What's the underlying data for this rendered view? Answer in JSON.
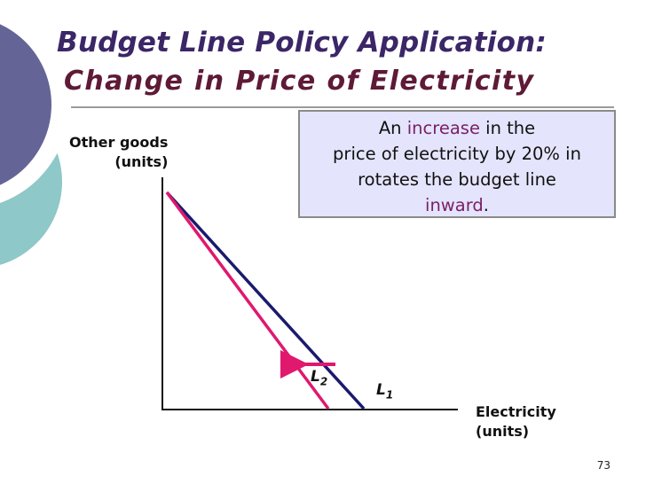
{
  "slide": {
    "title_line1": "Budget Line Policy Application:",
    "title_line2": "Change in Price of Electricity",
    "page_number": "73"
  },
  "callout": {
    "pre": "An ",
    "highlight1": "increase",
    "post1": " in the",
    "line2": "price of electricity by 20% in",
    "line3": "rotates the budget line",
    "highlight2": "inward",
    "post2": "."
  },
  "axes": {
    "y_label_line1": "Other goods",
    "y_label_line2": "(units)",
    "x_label_line1": "Electricity",
    "x_label_line2": "(units)"
  },
  "lines": {
    "L1": {
      "letter": "L",
      "sub": "1",
      "color": "#1a1a6e"
    },
    "L2": {
      "letter": "L",
      "sub": "2",
      "color": "#e0186e"
    }
  },
  "colors": {
    "title": "#3b2667",
    "accent": "#7a2166",
    "deco_blue": "#646496",
    "deco_teal": "#8ec8c8"
  }
}
